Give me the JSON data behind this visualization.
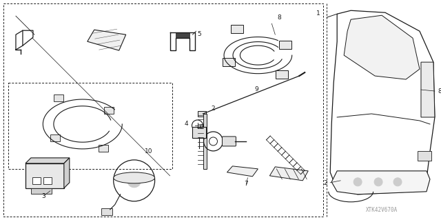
{
  "bg_color": "#ffffff",
  "fig_width": 6.4,
  "fig_height": 3.19,
  "dpi": 100,
  "watermark": "XTK42V670A",
  "line_color": "#1a1a1a",
  "dash_pattern": [
    3,
    2
  ],
  "lw": 0.7
}
